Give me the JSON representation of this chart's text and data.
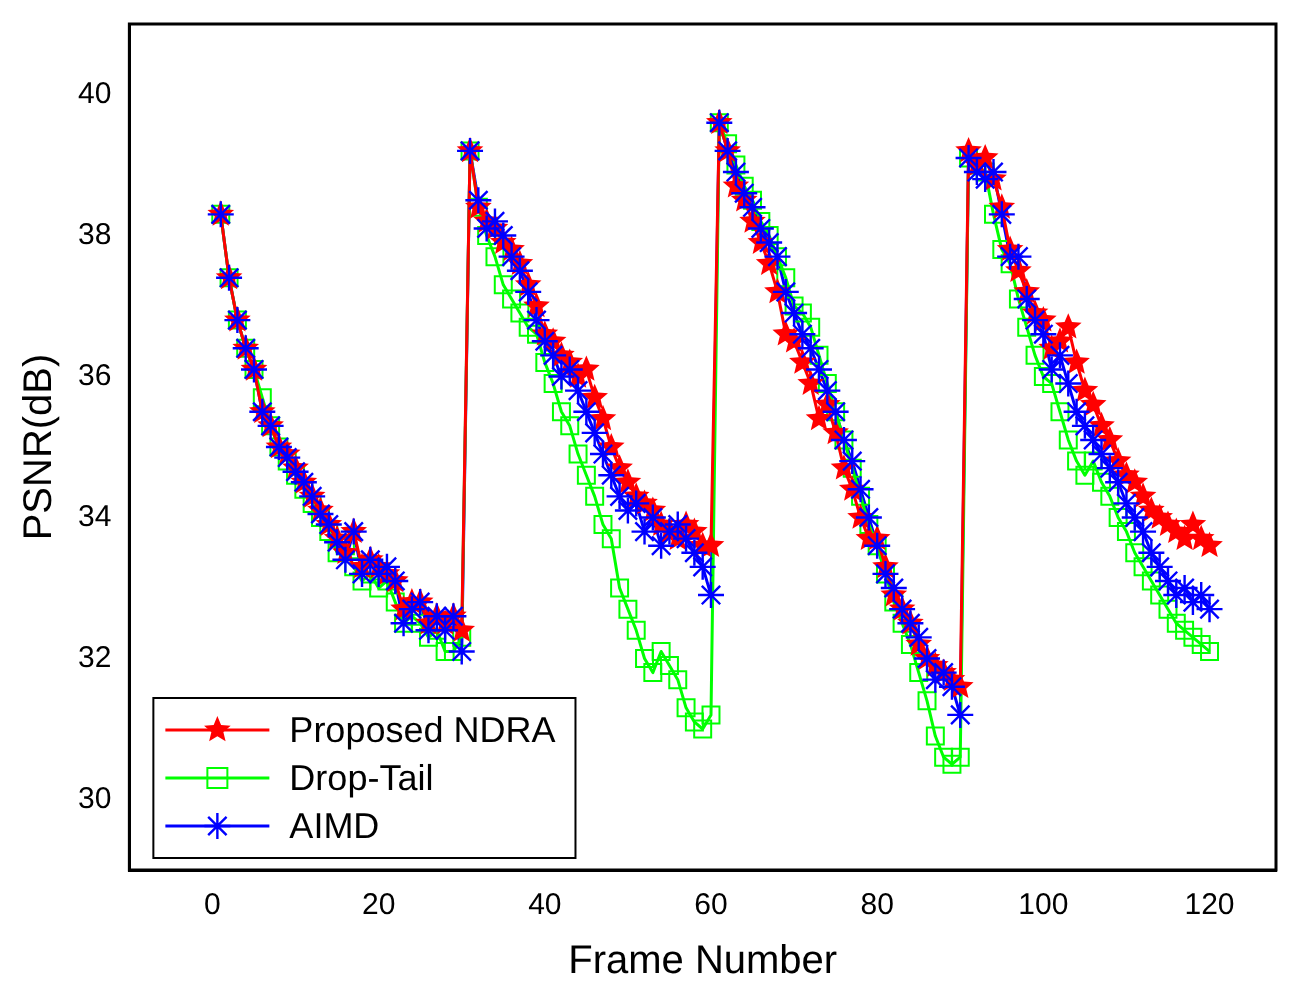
{
  "chart_data": {
    "type": "line",
    "xlabel": "Frame Number",
    "ylabel": "PSNR(dB)",
    "legend": "bottom left",
    "xlim": [
      -10,
      128
    ],
    "xticks": [
      0,
      20,
      40,
      60,
      80,
      100,
      120
    ],
    "ylim": [
      29,
      41
    ],
    "yticks": [
      30,
      32,
      34,
      36,
      38,
      40
    ],
    "grid": false,
    "x": [
      1,
      2,
      3,
      4,
      5,
      6,
      7,
      8,
      9,
      10,
      11,
      12,
      13,
      14,
      15,
      16,
      17,
      18,
      19,
      20,
      21,
      22,
      23,
      24,
      25,
      26,
      27,
      28,
      29,
      30,
      31,
      32,
      33,
      34,
      35,
      36,
      37,
      38,
      39,
      40,
      41,
      42,
      43,
      44,
      45,
      46,
      47,
      48,
      49,
      50,
      51,
      52,
      53,
      54,
      55,
      56,
      57,
      58,
      59,
      60,
      61,
      62,
      63,
      64,
      65,
      66,
      67,
      68,
      69,
      70,
      71,
      72,
      73,
      74,
      75,
      76,
      77,
      78,
      79,
      80,
      81,
      82,
      83,
      84,
      85,
      86,
      87,
      88,
      89,
      90,
      91,
      92,
      93,
      94,
      95,
      96,
      97,
      98,
      99,
      100,
      101,
      102,
      103,
      104,
      105,
      106,
      107,
      108,
      109,
      110,
      111,
      112,
      113,
      114,
      115,
      116,
      117,
      118,
      119,
      120
    ],
    "series": [
      {
        "name": "Proposed NDRA",
        "color": "#ff0000",
        "marker": "star",
        "values": [
          38.3,
          37.4,
          36.8,
          36.4,
          36.1,
          35.5,
          35.3,
          35.0,
          34.9,
          34.7,
          34.5,
          34.3,
          34.1,
          33.9,
          33.7,
          33.5,
          33.8,
          33.3,
          33.4,
          33.3,
          33.2,
          33.1,
          32.7,
          32.8,
          32.8,
          32.5,
          32.6,
          32.5,
          32.6,
          32.4,
          39.2,
          38.4,
          38.2,
          38.1,
          37.9,
          37.8,
          37.6,
          37.3,
          37.0,
          36.6,
          36.5,
          36.3,
          36.2,
          36.0,
          36.1,
          35.7,
          35.4,
          35.0,
          34.7,
          34.5,
          34.3,
          34.2,
          34.1,
          33.9,
          33.8,
          33.7,
          33.9,
          33.8,
          33.6,
          33.6,
          39.6,
          39.2,
          38.7,
          38.5,
          38.2,
          37.9,
          37.6,
          37.2,
          36.6,
          36.5,
          36.2,
          35.9,
          35.4,
          35.6,
          35.2,
          34.7,
          34.4,
          34.0,
          33.7,
          33.7,
          33.3,
          32.9,
          32.7,
          32.5,
          32.2,
          32.0,
          31.9,
          31.8,
          31.7,
          31.6,
          39.2,
          39.0,
          39.1,
          38.8,
          38.4,
          37.8,
          37.5,
          37.2,
          36.9,
          36.8,
          36.4,
          36.5,
          36.7,
          36.2,
          35.8,
          35.6,
          35.3,
          35.1,
          34.8,
          34.6,
          34.5,
          34.3,
          34.1,
          34.0,
          33.9,
          33.8,
          33.7,
          33.9,
          33.7,
          33.6
        ]
      },
      {
        "name": "Drop-Tail",
        "color": "#00ff00",
        "marker": "square",
        "values": [
          38.3,
          37.4,
          36.8,
          36.4,
          36.1,
          35.7,
          35.3,
          35.0,
          34.8,
          34.6,
          34.4,
          34.2,
          34.0,
          33.8,
          33.5,
          33.6,
          33.3,
          33.1,
          33.2,
          33.0,
          33.1,
          32.8,
          32.5,
          32.6,
          32.5,
          32.3,
          32.4,
          32.1,
          32.1,
          32.3,
          39.2,
          38.4,
          38.0,
          37.7,
          37.3,
          37.1,
          36.9,
          36.7,
          36.6,
          36.2,
          35.9,
          35.5,
          35.3,
          34.9,
          34.6,
          34.3,
          33.9,
          33.7,
          33.0,
          32.7,
          32.4,
          32.0,
          31.8,
          32.1,
          31.9,
          31.7,
          31.3,
          31.1,
          31.0,
          31.2,
          39.6,
          39.3,
          39.0,
          38.7,
          38.5,
          38.2,
          38.0,
          37.7,
          37.4,
          37.0,
          36.9,
          36.7,
          36.3,
          35.9,
          35.5,
          35.1,
          34.7,
          34.3,
          33.9,
          33.6,
          33.2,
          32.8,
          32.5,
          32.2,
          31.8,
          31.4,
          30.9,
          30.6,
          30.5,
          30.6,
          39.1,
          39.0,
          38.9,
          38.3,
          37.8,
          37.6,
          37.1,
          36.7,
          36.3,
          36.0,
          35.9,
          35.5,
          35.1,
          34.8,
          34.6,
          34.8,
          34.5,
          34.3,
          34.0,
          33.8,
          33.5,
          33.3,
          33.1,
          32.9,
          32.7,
          32.5,
          32.4,
          32.3,
          32.2,
          32.1
        ]
      },
      {
        "name": "AIMD",
        "color": "#0000ff",
        "marker": "cross",
        "values": [
          38.3,
          37.4,
          36.8,
          36.4,
          36.1,
          35.5,
          35.3,
          35.0,
          34.85,
          34.65,
          34.5,
          34.3,
          34.05,
          33.9,
          33.65,
          33.4,
          33.8,
          33.2,
          33.4,
          33.2,
          33.3,
          33.1,
          32.5,
          32.7,
          32.8,
          32.4,
          32.6,
          32.4,
          32.6,
          32.1,
          39.2,
          38.5,
          38.1,
          38.2,
          38.0,
          37.7,
          37.5,
          37.2,
          36.8,
          36.5,
          36.3,
          36.0,
          36.1,
          35.8,
          35.5,
          35.2,
          34.9,
          34.6,
          34.3,
          34.1,
          34.2,
          33.8,
          34.0,
          33.6,
          33.8,
          33.9,
          33.7,
          33.5,
          33.3,
          32.9,
          39.6,
          39.2,
          38.9,
          38.6,
          38.4,
          38.1,
          37.9,
          37.7,
          37.2,
          36.9,
          36.6,
          36.4,
          36.1,
          35.8,
          35.5,
          35.1,
          34.8,
          34.4,
          34.0,
          33.6,
          33.2,
          33.0,
          32.7,
          32.5,
          32.3,
          32.0,
          31.7,
          31.8,
          31.6,
          31.2,
          39.1,
          38.9,
          38.8,
          38.9,
          38.3,
          37.7,
          37.7,
          37.1,
          36.8,
          36.6,
          36.1,
          36.3,
          35.9,
          35.5,
          35.3,
          35.1,
          34.9,
          34.7,
          34.5,
          34.2,
          34.0,
          33.8,
          33.5,
          33.3,
          33.1,
          32.9,
          33.0,
          32.8,
          32.9,
          32.7
        ]
      }
    ]
  }
}
